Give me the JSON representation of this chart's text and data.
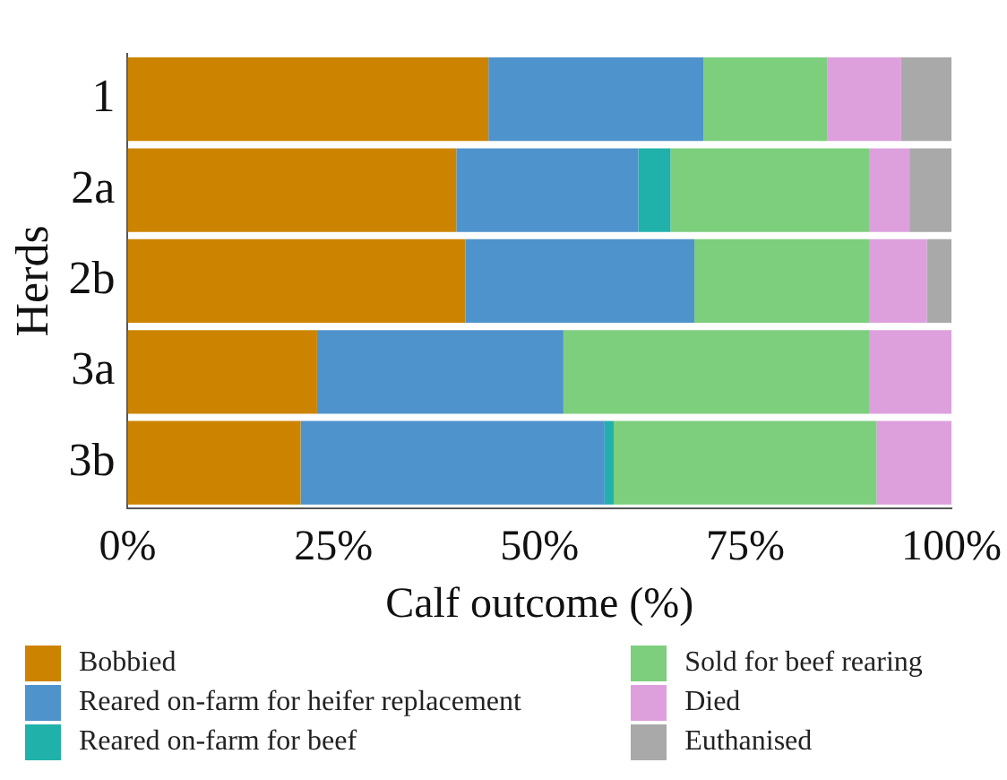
{
  "chart_data": {
    "type": "bar",
    "orientation": "horizontal",
    "stacked": true,
    "xlabel": "Calf outcome (%)",
    "ylabel": "Herds",
    "categories": [
      "1",
      "2a",
      "2b",
      "3a",
      "3b"
    ],
    "series": [
      {
        "name": "Bobbied",
        "color": "#cc8400",
        "values": [
          43.8,
          39.9,
          41.0,
          23.0,
          21.0
        ]
      },
      {
        "name": "Reared on-farm for heifer replacement",
        "color": "#4f93cc",
        "values": [
          26.1,
          22.1,
          27.8,
          29.9,
          36.9
        ]
      },
      {
        "name": "Reared on-farm for beef",
        "color": "#20b2aa",
        "values": [
          0,
          3.9,
          0,
          0,
          1.1
        ]
      },
      {
        "name": "Sold for beef rearing",
        "color": "#7dce7d",
        "values": [
          15.0,
          24.1,
          21.2,
          37.1,
          31.9
        ]
      },
      {
        "name": "Died",
        "color": "#dda0dd",
        "values": [
          9.0,
          4.9,
          7.0,
          10.0,
          9.1
        ]
      },
      {
        "name": "Euthanised",
        "color": "#a9a9a9",
        "values": [
          6.1,
          5.1,
          3.0,
          0,
          0
        ]
      }
    ],
    "xlim": [
      0,
      100
    ],
    "xticks": [
      {
        "value": 0,
        "label": "0%"
      },
      {
        "value": 25,
        "label": "25%"
      },
      {
        "value": 50,
        "label": "50%"
      },
      {
        "value": 75,
        "label": "75%"
      },
      {
        "value": 100,
        "label": "100%"
      }
    ],
    "grid": false,
    "legend": "bottom"
  }
}
